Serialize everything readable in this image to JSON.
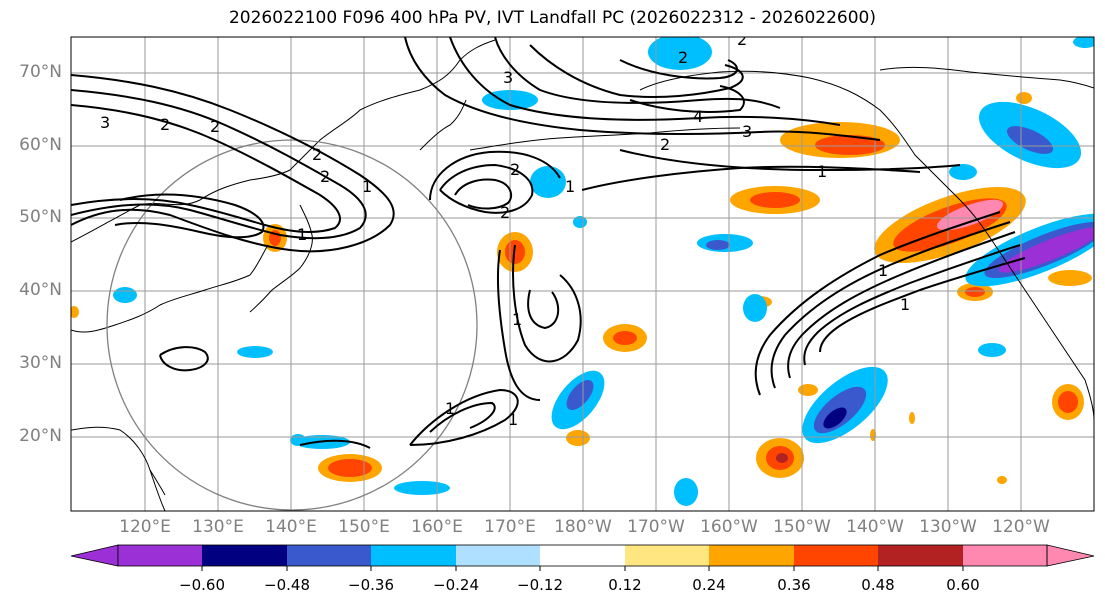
{
  "title": "2026022100 F096 400 hPa PV, IVT Landfall PC (2026022312 - 2026022600)",
  "lat_labels": [
    "70°N",
    "60°N",
    "50°N",
    "40°N",
    "30°N",
    "20°N"
  ],
  "lon_labels": [
    "120°E",
    "130°E",
    "140°E",
    "150°E",
    "160°E",
    "170°E",
    "180°W",
    "170°W",
    "160°W",
    "150°W",
    "140°W",
    "130°W",
    "120°W"
  ],
  "colorbar": {
    "ticks": [
      "−0.60",
      "−0.48",
      "−0.36",
      "−0.24",
      "−0.12",
      "0.12",
      "0.24",
      "0.36",
      "0.48",
      "0.60"
    ],
    "colors": [
      "#9b30d6",
      "#000080",
      "#3a59cc",
      "#00bfff",
      "#b0e0ff",
      "#ffffff",
      "#ffe680",
      "#ffa500",
      "#ff4500",
      "#b22222",
      "#ff88b0"
    ]
  },
  "contour_labels": [
    "3",
    "2",
    "2",
    "2",
    "1",
    "2",
    "1",
    "2",
    "2",
    "2",
    "3",
    "3",
    "2",
    "1",
    "1",
    "1",
    "1",
    "1",
    "2",
    "1",
    "1",
    "4"
  ],
  "colors": {
    "land": "#000000",
    "grid": "#9a9a9a",
    "circle": "#808080",
    "contour": "#000000"
  }
}
